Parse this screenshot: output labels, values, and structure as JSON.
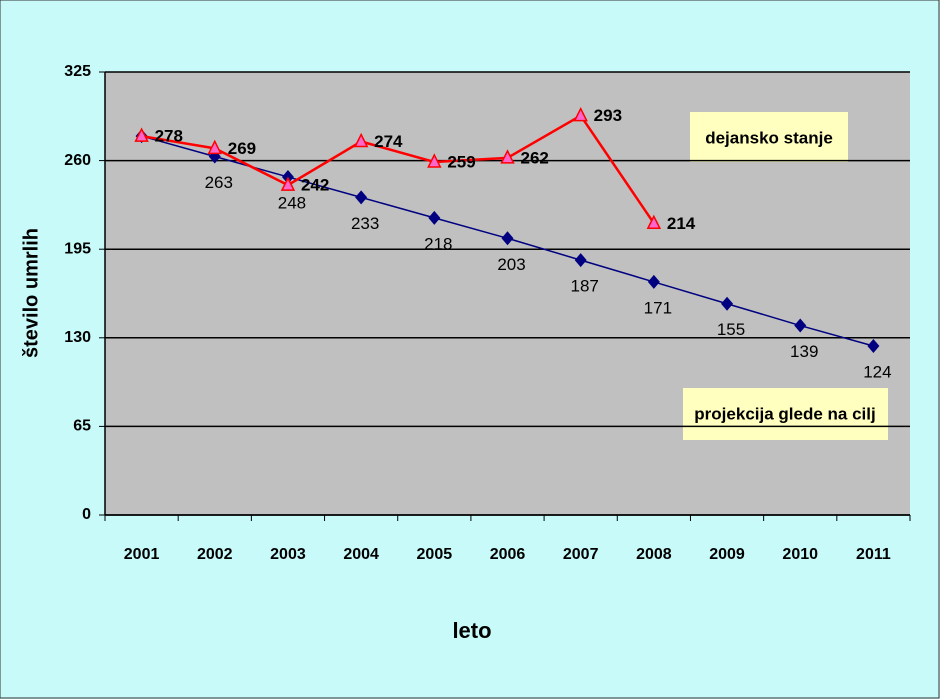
{
  "chart_data": {
    "type": "line",
    "x_label": "leto",
    "y_label": "število umrlih",
    "categories": [
      "2001",
      "2002",
      "2003",
      "2004",
      "2005",
      "2006",
      "2007",
      "2008",
      "2009",
      "2010",
      "2011"
    ],
    "series": [
      {
        "name": "projekcija glede na cilj",
        "color": "#000080",
        "marker": "diamond",
        "values": [
          278,
          263,
          248,
          233,
          218,
          203,
          187,
          171,
          155,
          139,
          124
        ],
        "value_labels": [
          null,
          "263",
          "248",
          "233",
          "218",
          "203",
          "187",
          "171",
          "155",
          "139",
          "124"
        ]
      },
      {
        "name": "dejansko stanje",
        "color": "#ff0000",
        "marker": "triangle",
        "values": [
          278,
          269,
          242,
          274,
          259,
          262,
          293,
          214,
          null,
          null,
          null
        ]
      }
    ],
    "ylim": [
      0,
      325
    ],
    "yticks": [
      0,
      65,
      130,
      195,
      260,
      325
    ],
    "grid": true
  }
}
